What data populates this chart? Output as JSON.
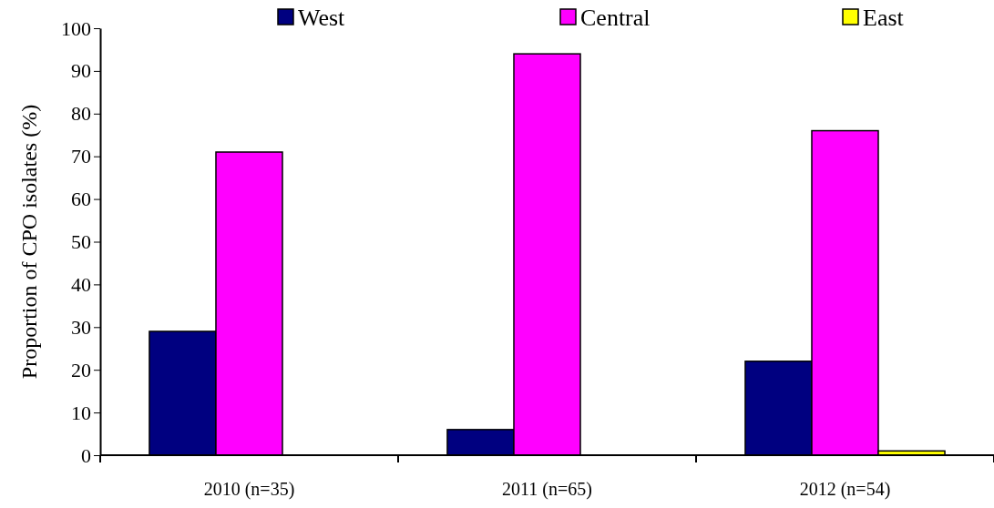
{
  "chart_data": {
    "type": "bar",
    "ylabel": "Proportion of CPO isolates (%)",
    "categories": [
      "2010 (n=35)",
      "2011 (n=65)",
      "2012 (n=54)"
    ],
    "series": [
      {
        "name": "West",
        "color": "#000080",
        "values": [
          29,
          6,
          22
        ]
      },
      {
        "name": "Central",
        "color": "#ff00ff",
        "values": [
          71,
          94,
          76
        ]
      },
      {
        "name": "East",
        "color": "#ffff00",
        "values": [
          0,
          0,
          1
        ]
      }
    ],
    "ylim": [
      0,
      100
    ],
    "yticks": [
      0,
      10,
      20,
      30,
      40,
      50,
      60,
      70,
      80,
      90,
      100
    ],
    "grid": false,
    "legend": "top"
  }
}
